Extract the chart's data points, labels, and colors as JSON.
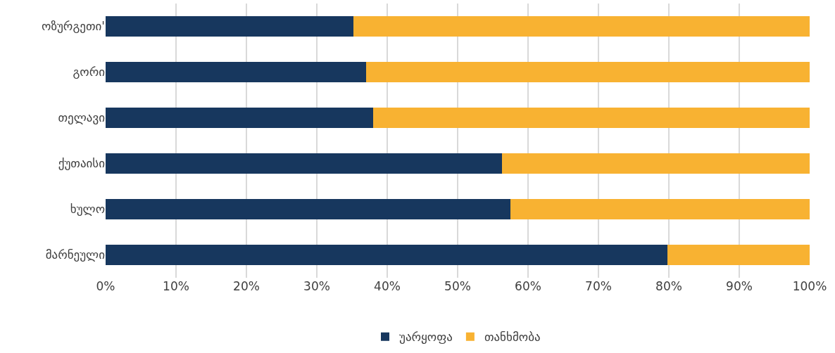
{
  "chart_data": {
    "type": "bar",
    "orientation": "horizontal",
    "stacked": true,
    "categories": [
      "ოზურგეთი'",
      "გორი",
      "თელავი",
      "ქუთაისი",
      "ხულო",
      "მარნეული"
    ],
    "series": [
      {
        "name": "უარყოფა",
        "color": "#17375e",
        "values": [
          35.2,
          37.0,
          38.0,
          56.3,
          57.5,
          79.8
        ]
      },
      {
        "name": "თანხმობა",
        "color": "#f8b232",
        "values": [
          64.8,
          63.0,
          62.0,
          43.7,
          42.5,
          20.2
        ]
      }
    ],
    "xlim": [
      0,
      100
    ],
    "xticks": [
      {
        "value": 0,
        "label": "0%"
      },
      {
        "value": 10,
        "label": "10%"
      },
      {
        "value": 20,
        "label": "20%"
      },
      {
        "value": 30,
        "label": "30%"
      },
      {
        "value": 40,
        "label": "40%"
      },
      {
        "value": 50,
        "label": "50%"
      },
      {
        "value": 60,
        "label": "60%"
      },
      {
        "value": 70,
        "label": "70%"
      },
      {
        "value": 80,
        "label": "80%"
      },
      {
        "value": 90,
        "label": "90%"
      },
      {
        "value": 100,
        "label": "100%"
      }
    ],
    "grid": "x",
    "legend": "bottom"
  }
}
